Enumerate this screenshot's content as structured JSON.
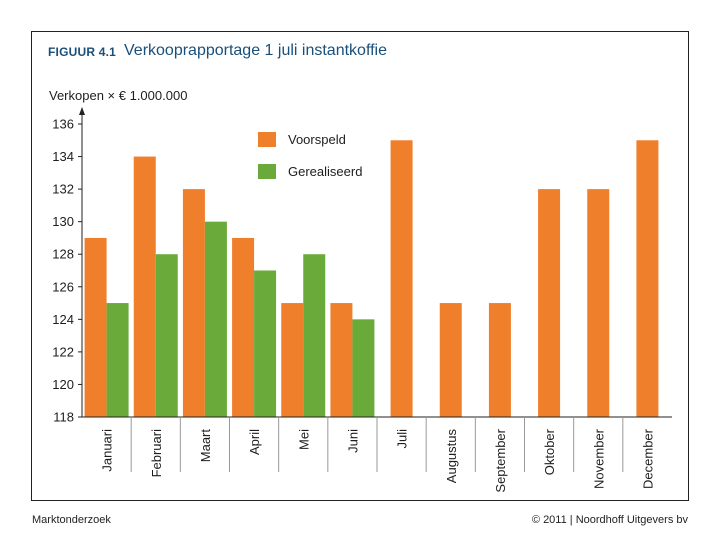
{
  "figure": {
    "label": "FIGUUR 4.1",
    "title": "Verkooprapportage 1 juli instantkoffie"
  },
  "footer": {
    "left": "Marktonderzoek",
    "right": "© 2011  |  Noordhoff Uitgevers bv"
  },
  "colors": {
    "forecast": "#f07f2b",
    "realized": "#6aaa3a",
    "title": "#1a4f7a"
  },
  "chart_data": {
    "type": "bar",
    "title": "Verkooprapportage 1 juli instantkoffie",
    "xlabel": "",
    "ylabel": "Verkopen × € 1.000.000",
    "ylim": [
      118,
      136
    ],
    "yticks": [
      118,
      120,
      122,
      124,
      126,
      128,
      130,
      132,
      134,
      136
    ],
    "grid": false,
    "legend_position": "top-center",
    "categories": [
      "Januari",
      "Februari",
      "Maart",
      "April",
      "Mei",
      "Juni",
      "Juli",
      "Augustus",
      "September",
      "Oktober",
      "November",
      "December"
    ],
    "series": [
      {
        "name": "Voorspeld",
        "values": [
          129,
          134,
          132,
          129,
          125,
          125,
          135,
          125,
          125,
          132,
          132,
          135
        ]
      },
      {
        "name": "Gerealiseerd",
        "values": [
          125,
          128,
          130,
          127,
          128,
          124,
          null,
          null,
          null,
          null,
          null,
          null
        ]
      }
    ]
  }
}
